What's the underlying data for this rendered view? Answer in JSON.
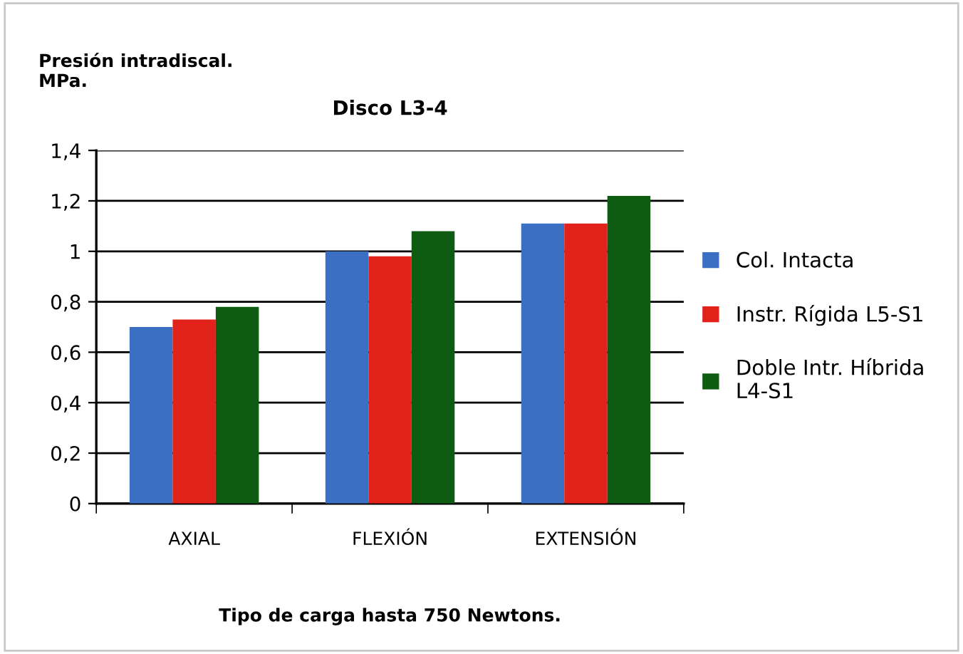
{
  "chart_data": {
    "type": "bar",
    "title": "Disco L3-4",
    "ylabel": "Presión intradiscal.\nMPa.",
    "xlabel": "Tipo de carga hasta 750 Newtons.",
    "categories": [
      "AXIAL",
      "FLEXIÓN",
      "EXTENSIÓN"
    ],
    "series": [
      {
        "name": "Col. Intacta",
        "color": "#3a6fc4",
        "values": [
          0.7,
          1.0,
          1.11
        ]
      },
      {
        "name": "Instr. Rígida L5-S1",
        "color": "#e0221b",
        "values": [
          0.73,
          0.98,
          1.11
        ]
      },
      {
        "name": "Doble Intr. Híbrida\nL4-S1",
        "color": "#0e5c12",
        "values": [
          0.78,
          1.08,
          1.22
        ]
      }
    ],
    "ylim": [
      0,
      1.4
    ],
    "yticks": [
      {
        "value": 0,
        "label": "0"
      },
      {
        "value": 0.2,
        "label": "0,2"
      },
      {
        "value": 0.4,
        "label": "0,4"
      },
      {
        "value": 0.6,
        "label": "0,6"
      },
      {
        "value": 0.8,
        "label": "0,8"
      },
      {
        "value": 1,
        "label": "1"
      },
      {
        "value": 1.2,
        "label": "1,2"
      },
      {
        "value": 1.4,
        "label": "1,4"
      }
    ],
    "grid": "y",
    "legend": "right"
  }
}
